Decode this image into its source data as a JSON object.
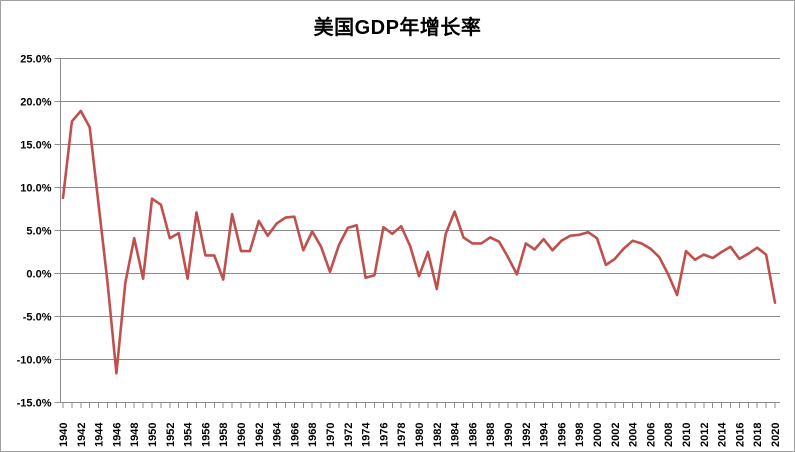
{
  "title": "美国GDP年增长率",
  "chart_data": {
    "type": "line",
    "title": "美国GDP年增长率",
    "xlabel": "",
    "ylabel": "",
    "ylim": [
      -15,
      25
    ],
    "y_tick_step": 5,
    "y_tick_labels": [
      "25.0%",
      "20.0%",
      "15.0%",
      "10.0%",
      "5.0%",
      "0.0%",
      "-5.0%",
      "-10.0%",
      "-15.0%"
    ],
    "x_tick_labels": [
      "1940",
      "1942",
      "1944",
      "1946",
      "1948",
      "1950",
      "1952",
      "1954",
      "1956",
      "1958",
      "1960",
      "1962",
      "1964",
      "1966",
      "1968",
      "1970",
      "1972",
      "1974",
      "1976",
      "1978",
      "1980",
      "1982",
      "1984",
      "1986",
      "1988",
      "1990",
      "1992",
      "1994",
      "1996",
      "1998",
      "2000",
      "2002",
      "2004",
      "2006",
      "2008",
      "2010",
      "2012",
      "2014",
      "2016",
      "2018",
      "2020"
    ],
    "grid": "horizontal",
    "legend": "none",
    "colors": {
      "line": "#C0504D",
      "grid": "#8c8c8c",
      "axis": "#8c8c8c",
      "border": "#a0a0a0",
      "background": "#ffffff",
      "text": "#000000"
    },
    "years": [
      1940,
      1941,
      1942,
      1943,
      1944,
      1945,
      1946,
      1947,
      1948,
      1949,
      1950,
      1951,
      1952,
      1953,
      1954,
      1955,
      1956,
      1957,
      1958,
      1959,
      1960,
      1961,
      1962,
      1963,
      1964,
      1965,
      1966,
      1967,
      1968,
      1969,
      1970,
      1971,
      1972,
      1973,
      1974,
      1975,
      1976,
      1977,
      1978,
      1979,
      1980,
      1981,
      1982,
      1983,
      1984,
      1985,
      1986,
      1987,
      1988,
      1989,
      1990,
      1991,
      1992,
      1993,
      1994,
      1995,
      1996,
      1997,
      1998,
      1999,
      2000,
      2001,
      2002,
      2003,
      2004,
      2005,
      2006,
      2007,
      2008,
      2009,
      2010,
      2011,
      2012,
      2013,
      2014,
      2015,
      2016,
      2017,
      2018,
      2019,
      2020
    ],
    "series": [
      {
        "name": "美国GDP年增长率",
        "values": [
          8.8,
          17.7,
          18.9,
          17.0,
          8.0,
          -1.0,
          -11.6,
          -1.1,
          4.1,
          -0.6,
          8.7,
          8.0,
          4.1,
          4.7,
          -0.6,
          7.1,
          2.1,
          2.1,
          -0.7,
          6.9,
          2.6,
          2.6,
          6.1,
          4.4,
          5.8,
          6.5,
          6.6,
          2.7,
          4.9,
          3.1,
          0.2,
          3.3,
          5.3,
          5.6,
          -0.5,
          -0.2,
          5.4,
          4.6,
          5.5,
          3.2,
          -0.3,
          2.5,
          -1.8,
          4.6,
          7.2,
          4.2,
          3.5,
          3.5,
          4.2,
          3.7,
          1.9,
          -0.1,
          3.5,
          2.8,
          4.0,
          2.7,
          3.8,
          4.4,
          4.5,
          4.8,
          4.1,
          1.0,
          1.7,
          2.9,
          3.8,
          3.5,
          2.9,
          1.9,
          -0.1,
          -2.5,
          2.6,
          1.6,
          2.2,
          1.8,
          2.5,
          3.1,
          1.7,
          2.3,
          3.0,
          2.2,
          -3.4
        ]
      }
    ]
  }
}
